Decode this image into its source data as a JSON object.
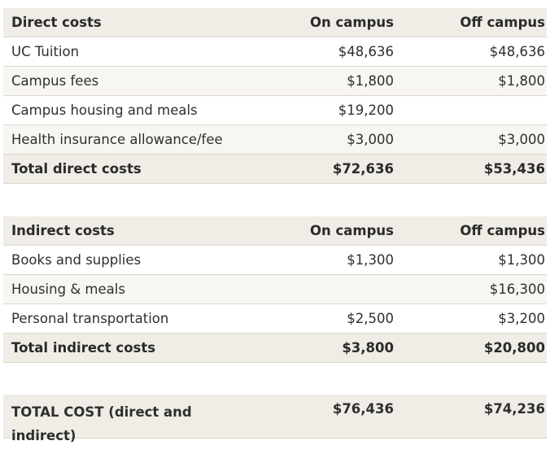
{
  "direct": {
    "header": {
      "label": "Direct costs",
      "on": "On campus",
      "off": "Off campus"
    },
    "rows": [
      {
        "label": "UC Tuition",
        "on": "$48,636",
        "off": "$48,636"
      },
      {
        "label": "Campus fees",
        "on": "$1,800",
        "off": "$1,800"
      },
      {
        "label": "Campus housing and meals",
        "on": "$19,200",
        "off": ""
      },
      {
        "label": "Health insurance allowance/fee",
        "on": "$3,000",
        "off": "$3,000"
      }
    ],
    "total": {
      "label": "Total direct costs",
      "on": "$72,636",
      "off": "$53,436"
    }
  },
  "indirect": {
    "header": {
      "label": "Indirect costs",
      "on": "On campus",
      "off": "Off campus"
    },
    "rows": [
      {
        "label": "Books and supplies",
        "on": "$1,300",
        "off": "$1,300"
      },
      {
        "label": "Housing & meals",
        "on": "",
        "off": "$16,300"
      },
      {
        "label": "Personal transportation",
        "on": "$2,500",
        "off": "$3,200"
      }
    ],
    "total": {
      "label": "Total indirect costs",
      "on": "$3,800",
      "off": "$20,800"
    }
  },
  "grand_total": {
    "label": "TOTAL COST (direct and indirect)",
    "on": "$76,436",
    "off": "$74,236"
  }
}
